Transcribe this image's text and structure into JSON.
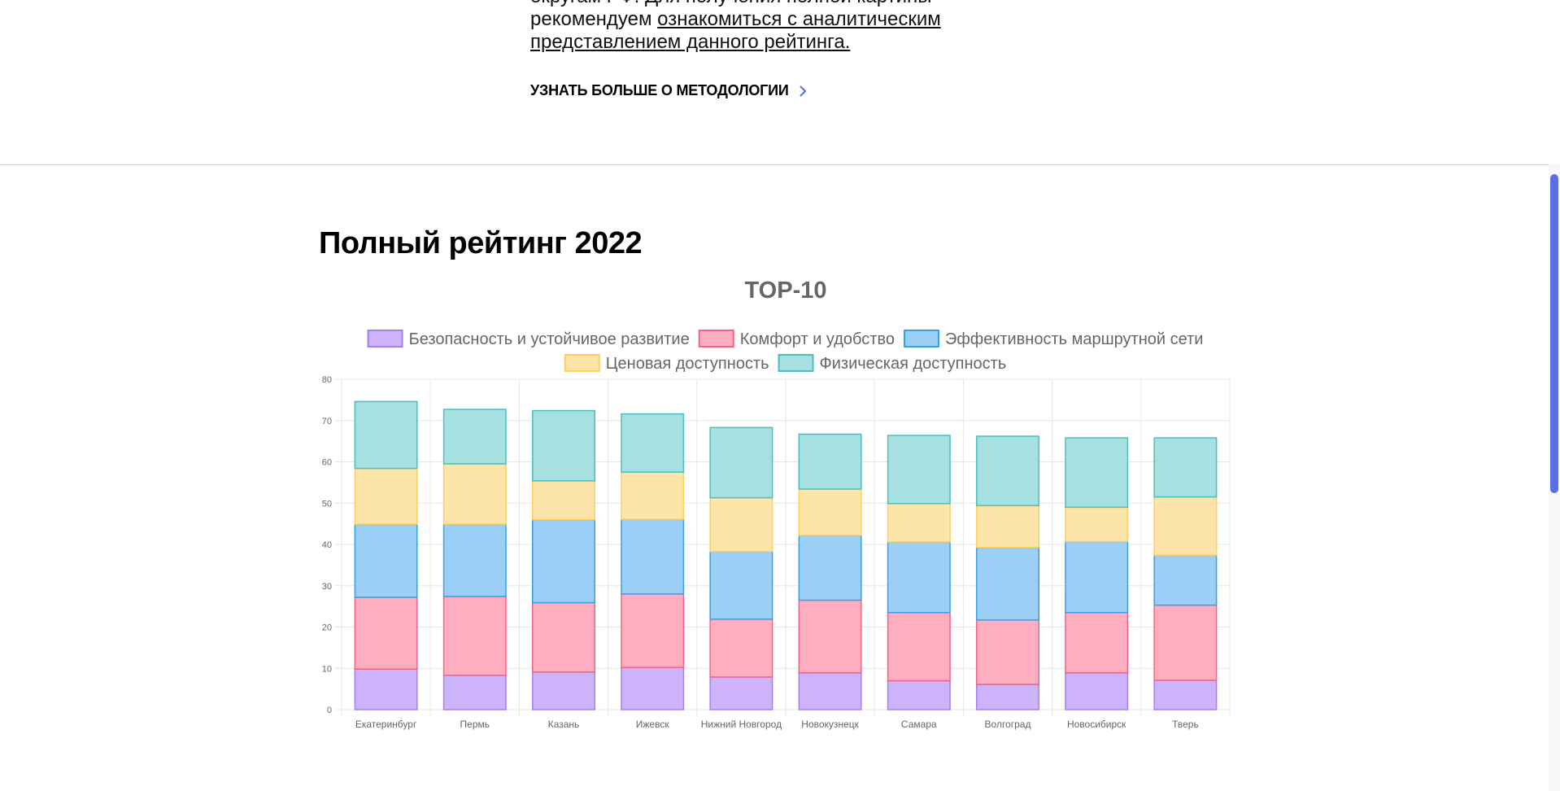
{
  "intro": {
    "line1": "округам РФ. Для получения полной картины",
    "line2_prefix": "рекомендуем ",
    "line2_link": "ознакомиться с аналитическим",
    "line3_link": "представлением данного рейтинга."
  },
  "methodology_link": {
    "label": "УЗНАТЬ БОЛЬШЕ О МЕТОДОЛОГИИ",
    "icon": "chevron-right-icon",
    "color": "#5b6de6"
  },
  "section": {
    "title": "Полный рейтинг 2022"
  },
  "chart_data": {
    "type": "bar",
    "stacked": true,
    "title": "TOP-10",
    "categories": [
      "Екатеринбург",
      "Пермь",
      "Казань",
      "Ижевск",
      "Нижний Новгород",
      "Новокузнецк",
      "Самара",
      "Волгоград",
      "Новосибирск",
      "Тверь"
    ],
    "series": [
      {
        "name": "Безопасность и устойчивое развитие",
        "color": "#cdb4fa",
        "border": "#a67ef0",
        "values": [
          9.8,
          8.3,
          9.1,
          10.2,
          7.9,
          8.9,
          7.0,
          6.1,
          8.9,
          7.1
        ]
      },
      {
        "name": "Комфорт и удобство",
        "color": "#feaec0",
        "border": "#f06384",
        "values": [
          17.4,
          19.1,
          16.8,
          17.8,
          14.0,
          17.6,
          16.5,
          15.6,
          14.6,
          18.2
        ]
      },
      {
        "name": "Эффективность маршрутной сети",
        "color": "#9ccff5",
        "border": "#36a0e8",
        "values": [
          17.7,
          17.5,
          20.1,
          18.1,
          16.4,
          15.7,
          17.1,
          17.6,
          17.2,
          12.1
        ]
      },
      {
        "name": "Ценовая доступность",
        "color": "#fde4a8",
        "border": "#ffcf60",
        "values": [
          13.5,
          14.6,
          9.4,
          11.4,
          13.0,
          11.2,
          9.3,
          10.1,
          8.3,
          14.1
        ]
      },
      {
        "name": "Физическая доступность",
        "color": "#a6e0e0",
        "border": "#4bbfbf",
        "values": [
          16.2,
          13.2,
          17.0,
          14.1,
          17.0,
          13.3,
          16.5,
          16.8,
          16.8,
          14.3
        ]
      }
    ],
    "ylim": [
      0,
      80
    ],
    "yticks": [
      0,
      10,
      20,
      30,
      40,
      50,
      60,
      70,
      80
    ],
    "grid": true,
    "legend_position": "top",
    "xlabel": "",
    "ylabel": ""
  }
}
